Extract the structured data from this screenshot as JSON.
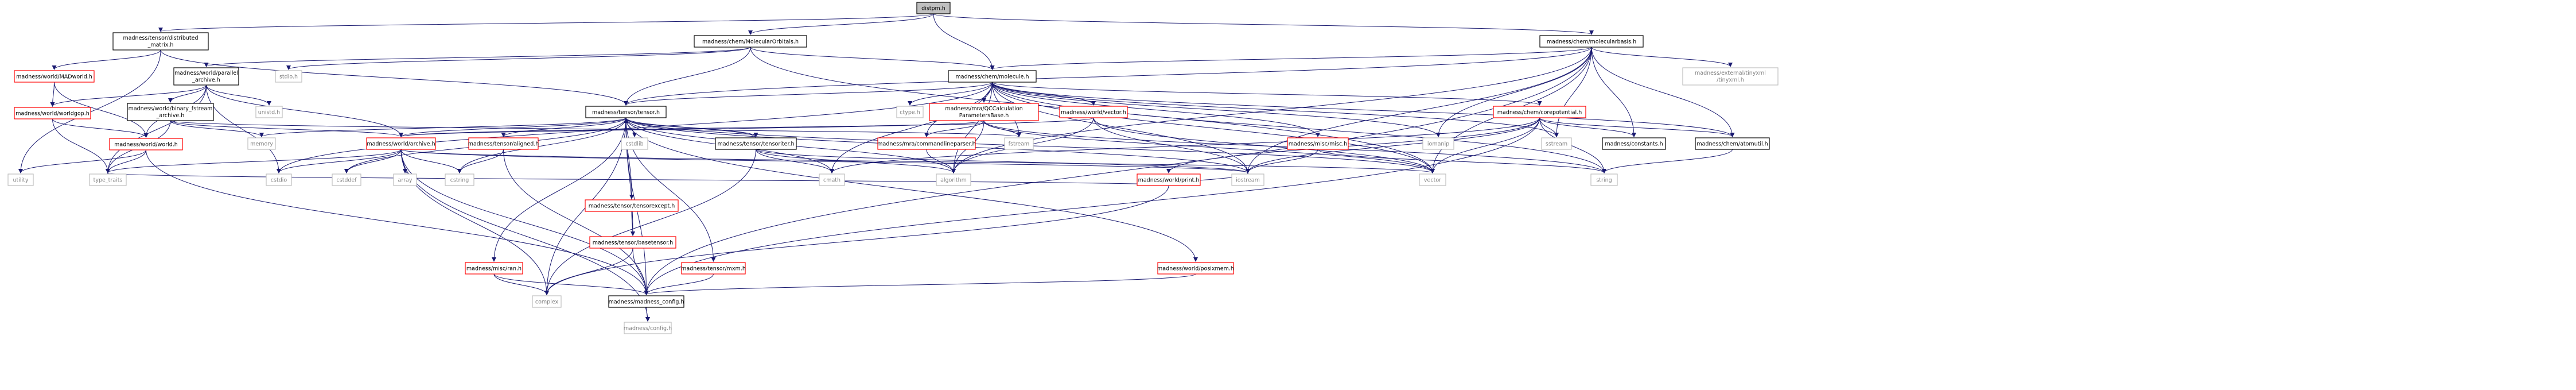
{
  "diagram": {
    "type": "include-dependency-graph",
    "colors": {
      "edge": "#191970",
      "root_fill": "#bfbfbf",
      "node_border": "#000000",
      "red_border": "#ff0000",
      "gray_border": "#bfbfbf",
      "gray_text": "#7f7f7f"
    },
    "nodes": [
      {
        "id": "distpm",
        "label": "distpm.h",
        "style": "root"
      },
      {
        "id": "tensor_distributed_matrix",
        "label": "madness/tensor/distributed_matrix.h",
        "style": "black"
      },
      {
        "id": "molecular_orbitals",
        "label": "madness/chem/MolecularOrbitals.h",
        "style": "black"
      },
      {
        "id": "molecularbasis",
        "label": "madness/chem/molecularbasis.h",
        "style": "black"
      },
      {
        "id": "madworld",
        "label": "madness/world/MADworld.h",
        "style": "red"
      },
      {
        "id": "parallel_archive",
        "label": "madness/world/parallel_archive.h",
        "style": "black"
      },
      {
        "id": "stdio",
        "label": "stdio.h",
        "style": "gray"
      },
      {
        "id": "molecule",
        "label": "madness/chem/molecule.h",
        "style": "black"
      },
      {
        "id": "tinyxml",
        "label": "madness/external/tinyxml/tinyxml.h",
        "style": "gray"
      },
      {
        "id": "worldgop",
        "label": "madness/world/worldgop.h",
        "style": "red"
      },
      {
        "id": "binary_fstream",
        "label": "madness/world/binary_fstream_archive.h",
        "style": "black"
      },
      {
        "id": "unistd",
        "label": "unistd.h",
        "style": "gray"
      },
      {
        "id": "tensor",
        "label": "madness/tensor/tensor.h",
        "style": "black"
      },
      {
        "id": "ctype",
        "label": "ctype.h",
        "style": "gray"
      },
      {
        "id": "qccalc",
        "label": "madness/mra/QCCalculationParametersBase.h",
        "style": "red"
      },
      {
        "id": "worldvector",
        "label": "madness/world/vector.h",
        "style": "red"
      },
      {
        "id": "corepotential",
        "label": "madness/chem/corepotential.h",
        "style": "red"
      },
      {
        "id": "worldworld",
        "label": "madness/world/world.h",
        "style": "red"
      },
      {
        "id": "memory",
        "label": "memory",
        "style": "gray"
      },
      {
        "id": "archive",
        "label": "madness/world/archive.h",
        "style": "red"
      },
      {
        "id": "aligned",
        "label": "madness/tensor/aligned.h",
        "style": "red"
      },
      {
        "id": "cstdlib",
        "label": "cstdlib",
        "style": "gray"
      },
      {
        "id": "tensoriter",
        "label": "madness/tensor/tensoriter.h",
        "style": "black"
      },
      {
        "id": "commandlineparser",
        "label": "madness/mra/commandlineparser.h",
        "style": "red"
      },
      {
        "id": "fstream",
        "label": "fstream",
        "style": "gray"
      },
      {
        "id": "misc",
        "label": "madness/misc/misc.h",
        "style": "red"
      },
      {
        "id": "iomanip",
        "label": "iomanip",
        "style": "gray"
      },
      {
        "id": "worldprint",
        "label": "madness/world/print.h",
        "style": "red"
      },
      {
        "id": "sstream",
        "label": "sstream",
        "style": "gray"
      },
      {
        "id": "constants",
        "label": "madness/constants.h",
        "style": "black"
      },
      {
        "id": "atomutil",
        "label": "madness/chem/atomutil.h",
        "style": "black"
      },
      {
        "id": "utility",
        "label": "utility",
        "style": "gray"
      },
      {
        "id": "type_traits",
        "label": "type_traits",
        "style": "gray"
      },
      {
        "id": "cstdio",
        "label": "cstdio",
        "style": "gray"
      },
      {
        "id": "cstddef",
        "label": "cstddef",
        "style": "gray"
      },
      {
        "id": "array",
        "label": "array",
        "style": "gray"
      },
      {
        "id": "cstring",
        "label": "cstring",
        "style": "gray"
      },
      {
        "id": "tensorexcept",
        "label": "madness/tensor/tensorexcept.h",
        "style": "red"
      },
      {
        "id": "cmath",
        "label": "cmath",
        "style": "gray"
      },
      {
        "id": "algorithm",
        "label": "algorithm",
        "style": "gray"
      },
      {
        "id": "iostream",
        "label": "iostream",
        "style": "gray"
      },
      {
        "id": "vector",
        "label": "vector",
        "style": "gray"
      },
      {
        "id": "string",
        "label": "string",
        "style": "gray"
      },
      {
        "id": "ran",
        "label": "madness/misc/ran.h",
        "style": "red"
      },
      {
        "id": "basetensor",
        "label": "madness/tensor/basetensor.h",
        "style": "red"
      },
      {
        "id": "mxm",
        "label": "madness/tensor/mxm.h",
        "style": "red"
      },
      {
        "id": "posixmem",
        "label": "madness/world/posixmem.h",
        "style": "red"
      },
      {
        "id": "complex",
        "label": "complex",
        "style": "gray"
      },
      {
        "id": "madness_config",
        "label": "madness/madness_config.h",
        "style": "black"
      },
      {
        "id": "config",
        "label": "madness/config.h",
        "style": "gray"
      }
    ],
    "edges": [
      [
        "distpm",
        "tensor_distributed_matrix"
      ],
      [
        "distpm",
        "molecular_orbitals"
      ],
      [
        "distpm",
        "molecularbasis"
      ],
      [
        "distpm",
        "molecule"
      ],
      [
        "tensor_distributed_matrix",
        "madworld"
      ],
      [
        "tensor_distributed_matrix",
        "tensor"
      ],
      [
        "tensor_distributed_matrix",
        "utility"
      ],
      [
        "molecular_orbitals",
        "parallel_archive"
      ],
      [
        "molecular_orbitals",
        "stdio"
      ],
      [
        "molecular_orbitals",
        "molecule"
      ],
      [
        "molecular_orbitals",
        "tensor"
      ],
      [
        "molecular_orbitals",
        "vector"
      ],
      [
        "molecularbasis",
        "molecule"
      ],
      [
        "molecularbasis",
        "tinyxml"
      ],
      [
        "molecularbasis",
        "tensor"
      ],
      [
        "molecularbasis",
        "atomutil"
      ],
      [
        "molecularbasis",
        "constants"
      ],
      [
        "molecularbasis",
        "sstream"
      ],
      [
        "molecularbasis",
        "iomanip"
      ],
      [
        "molecularbasis",
        "iostream"
      ],
      [
        "molecularbasis",
        "algorithm"
      ],
      [
        "molecularbasis",
        "vector"
      ],
      [
        "molecularbasis",
        "madness_config"
      ],
      [
        "madworld",
        "worldgop"
      ],
      [
        "madworld",
        "worldworld"
      ],
      [
        "parallel_archive",
        "worldgop"
      ],
      [
        "parallel_archive",
        "binary_fstream"
      ],
      [
        "parallel_archive",
        "unistd"
      ],
      [
        "parallel_archive",
        "worldworld"
      ],
      [
        "parallel_archive",
        "archive"
      ],
      [
        "parallel_archive",
        "cstdio"
      ],
      [
        "parallel_archive",
        "type_traits"
      ],
      [
        "molecule",
        "tensor"
      ],
      [
        "molecule",
        "ctype"
      ],
      [
        "molecule",
        "qccalc"
      ],
      [
        "molecule",
        "worldvector"
      ],
      [
        "molecule",
        "corepotential"
      ],
      [
        "molecule",
        "atomutil"
      ],
      [
        "molecule",
        "misc"
      ],
      [
        "molecule",
        "commandlineparser"
      ],
      [
        "molecule",
        "fstream"
      ],
      [
        "molecule",
        "cstdio"
      ],
      [
        "molecule",
        "cmath"
      ],
      [
        "molecule",
        "iostream"
      ],
      [
        "molecule",
        "vector"
      ],
      [
        "molecule",
        "string"
      ],
      [
        "molecule",
        "sstream"
      ],
      [
        "molecule",
        "iomanip"
      ],
      [
        "molecule",
        "algorithm"
      ],
      [
        "worldgop",
        "worldworld"
      ],
      [
        "worldgop",
        "type_traits"
      ],
      [
        "binary_fstream",
        "archive"
      ],
      [
        "binary_fstream",
        "fstream"
      ],
      [
        "binary_fstream",
        "memory"
      ],
      [
        "binary_fstream",
        "type_traits"
      ],
      [
        "tensor",
        "archive"
      ],
      [
        "tensor",
        "aligned"
      ],
      [
        "tensor",
        "cstdlib"
      ],
      [
        "tensor",
        "tensoriter"
      ],
      [
        "tensor",
        "tensorexcept"
      ],
      [
        "tensor",
        "basetensor"
      ],
      [
        "tensor",
        "mxm"
      ],
      [
        "tensor",
        "ran"
      ],
      [
        "tensor",
        "memory"
      ],
      [
        "tensor",
        "complex"
      ],
      [
        "tensor",
        "cmath"
      ],
      [
        "tensor",
        "madness_config"
      ],
      [
        "tensor",
        "cstddef"
      ],
      [
        "tensor",
        "cstring"
      ],
      [
        "tensor",
        "iostream"
      ],
      [
        "tensor",
        "vector"
      ],
      [
        "tensor",
        "algorithm"
      ],
      [
        "tensor",
        "posixmem"
      ],
      [
        "qccalc",
        "archive"
      ],
      [
        "qccalc",
        "commandlineparser"
      ],
      [
        "qccalc",
        "fstream"
      ],
      [
        "qccalc",
        "algorithm"
      ],
      [
        "qccalc",
        "vector"
      ],
      [
        "qccalc",
        "string"
      ],
      [
        "worldvector",
        "archive"
      ],
      [
        "worldvector",
        "iostream"
      ],
      [
        "worldvector",
        "algorithm"
      ],
      [
        "worldvector",
        "vector"
      ],
      [
        "corepotential",
        "worldprint"
      ],
      [
        "corepotential",
        "constants"
      ],
      [
        "corepotential",
        "atomutil"
      ],
      [
        "corepotential",
        "sstream"
      ],
      [
        "corepotential",
        "iostream"
      ],
      [
        "corepotential",
        "vector"
      ],
      [
        "corepotential",
        "string"
      ],
      [
        "corepotential",
        "madness_config"
      ],
      [
        "corepotential",
        "cmath"
      ],
      [
        "worldworld",
        "utility"
      ],
      [
        "worldworld",
        "type_traits"
      ],
      [
        "worldworld",
        "madness_config"
      ],
      [
        "archive",
        "type_traits"
      ],
      [
        "archive",
        "cstdio"
      ],
      [
        "archive",
        "cstddef"
      ],
      [
        "archive",
        "array"
      ],
      [
        "archive",
        "cstring"
      ],
      [
        "archive",
        "iostream"
      ],
      [
        "archive",
        "vector"
      ],
      [
        "archive",
        "complex"
      ],
      [
        "archive",
        "madness_config"
      ],
      [
        "archive",
        "config"
      ],
      [
        "aligned",
        "cstring"
      ],
      [
        "aligned",
        "madness_config"
      ],
      [
        "tensoriter",
        "tensor"
      ],
      [
        "tensoriter",
        "iostream"
      ],
      [
        "tensoriter",
        "algorithm"
      ],
      [
        "tensoriter",
        "complex"
      ],
      [
        "tensoriter",
        "cmath"
      ],
      [
        "commandlineparser",
        "algorithm"
      ],
      [
        "misc",
        "iostream"
      ],
      [
        "misc",
        "string"
      ],
      [
        "worldprint",
        "iostream"
      ],
      [
        "worldprint",
        "complex"
      ],
      [
        "worldprint",
        "type_traits"
      ],
      [
        "atomutil",
        "string"
      ],
      [
        "tensorexcept",
        "basetensor"
      ],
      [
        "ran",
        "madness_config"
      ],
      [
        "ran",
        "complex"
      ],
      [
        "basetensor",
        "madness_config"
      ],
      [
        "basetensor",
        "complex"
      ],
      [
        "mxm",
        "madness_config"
      ],
      [
        "posixmem",
        "madness_config"
      ],
      [
        "madness_config",
        "config"
      ]
    ]
  }
}
